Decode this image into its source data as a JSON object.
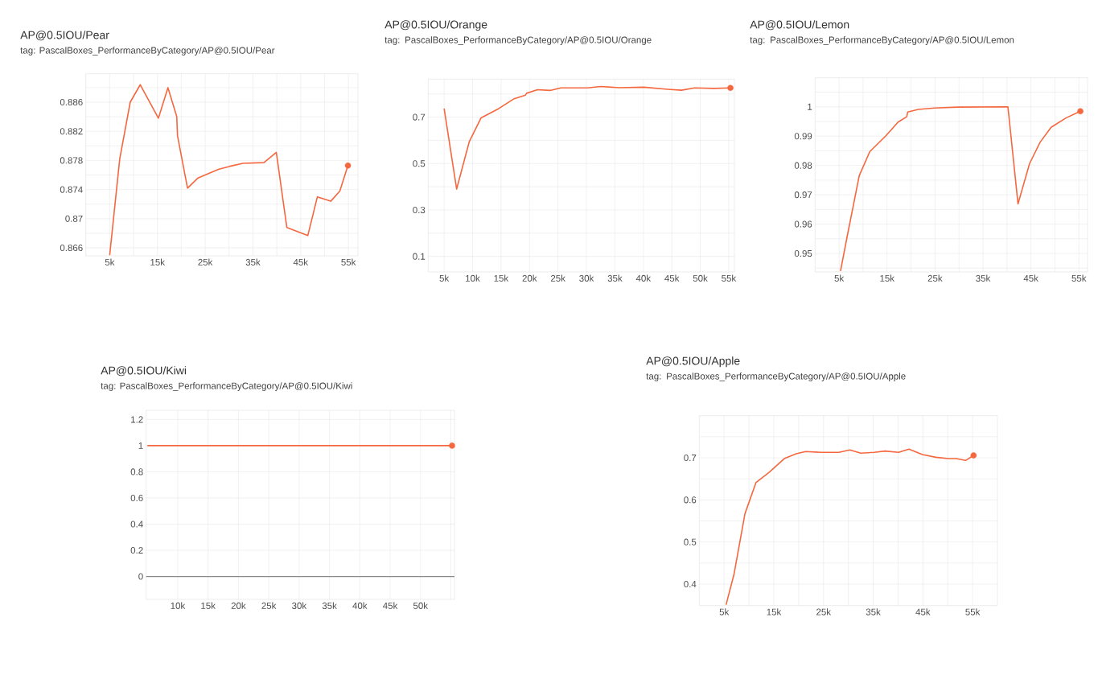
{
  "chart_data": [
    {
      "type": "line",
      "title": "AP@0.5IOU/Pear",
      "subtitle": "tag: PascalBoxes_PerformanceByCategory/AP@0.5IOU/Pear",
      "grid": true,
      "xlim": [
        0,
        57000
      ],
      "ylim": [
        0.8649,
        0.8899
      ],
      "xticks": [
        {
          "value": 5000,
          "label": "5k"
        },
        {
          "value": 10000,
          "label": null
        },
        {
          "value": 15000,
          "label": "15k"
        },
        {
          "value": 20000,
          "label": null
        },
        {
          "value": 25000,
          "label": "25k"
        },
        {
          "value": 30000,
          "label": null
        },
        {
          "value": 35000,
          "label": "35k"
        },
        {
          "value": 40000,
          "label": null
        },
        {
          "value": 45000,
          "label": "45k"
        },
        {
          "value": 50000,
          "label": null
        },
        {
          "value": 55000,
          "label": "55k"
        }
      ],
      "yticks": [
        0.866,
        {
          "value": 0.868,
          "label": null
        },
        0.87,
        {
          "value": 0.872,
          "label": null
        },
        0.874,
        {
          "value": 0.876,
          "label": null
        },
        0.878,
        {
          "value": 0.88,
          "label": null
        },
        0.882,
        {
          "value": 0.884,
          "label": null
        },
        0.886,
        {
          "value": 0.888,
          "label": null
        }
      ],
      "series": [
        {
          "color": "#f4673f",
          "x": [
            5000,
            7100,
            9300,
            11400,
            15200,
            17200,
            19050,
            19200,
            21300,
            23500,
            25700,
            27900,
            30200,
            32900,
            37300,
            39900,
            42100,
            46500,
            48500,
            51300,
            53200,
            54900
          ],
          "values": [
            0.865,
            0.8782,
            0.886,
            0.8884,
            0.8838,
            0.888,
            0.884,
            0.8814,
            0.8742,
            0.8756,
            0.8762,
            0.8768,
            0.8772,
            0.8776,
            0.8777,
            0.8791,
            0.8688,
            0.8677,
            0.873,
            0.8724,
            0.8738,
            0.8773
          ]
        },
        {
          "type": "scatter",
          "color": "#f4673f",
          "x": [
            54900
          ],
          "values": [
            0.8773
          ]
        }
      ]
    },
    {
      "type": "line",
      "title": "AP@0.5IOU/Orange",
      "subtitle": "tag: PascalBoxes_PerformanceByCategory/AP@0.5IOU/Orange",
      "grid": true,
      "xlim": [
        2200,
        56000
      ],
      "ylim": [
        0.033,
        0.864
      ],
      "xticks": [
        {
          "value": 5000,
          "label": "5k"
        },
        {
          "value": 10000,
          "label": "10k"
        },
        {
          "value": 15000,
          "label": "15k"
        },
        {
          "value": 20000,
          "label": "20k"
        },
        {
          "value": 25000,
          "label": "25k"
        },
        {
          "value": 30000,
          "label": "30k"
        },
        {
          "value": 35000,
          "label": "35k"
        },
        {
          "value": 40000,
          "label": "40k"
        },
        {
          "value": 45000,
          "label": "45k"
        },
        {
          "value": 50000,
          "label": "50k"
        },
        {
          "value": 55000,
          "label": "55k"
        }
      ],
      "yticks": [
        0.1,
        {
          "value": 0.2,
          "label": null
        },
        0.3,
        {
          "value": 0.4,
          "label": null
        },
        0.5,
        {
          "value": 0.6,
          "label": null
        },
        0.7,
        {
          "value": 0.8,
          "label": null
        }
      ],
      "series": [
        {
          "color": "#f4673f",
          "x": [
            5000,
            7200,
            9400,
            11500,
            14600,
            17200,
            19300,
            19500,
            21400,
            23600,
            25500,
            30200,
            32500,
            35800,
            40100,
            44300,
            46700,
            49000,
            52400,
            55300
          ],
          "values": [
            0.737,
            0.39,
            0.593,
            0.697,
            0.737,
            0.778,
            0.795,
            0.803,
            0.818,
            0.815,
            0.826,
            0.826,
            0.832,
            0.827,
            0.829,
            0.82,
            0.816,
            0.826,
            0.824,
            0.826
          ]
        },
        {
          "type": "scatter",
          "color": "#f4673f",
          "x": [
            55300
          ],
          "values": [
            0.826
          ]
        }
      ]
    },
    {
      "type": "line",
      "title": "AP@0.5IOU/Lemon",
      "subtitle": "tag: PascalBoxes_PerformanceByCategory/AP@0.5IOU/Lemon",
      "grid": true,
      "xlim": [
        0,
        56800
      ],
      "ylim": [
        0.9437,
        1.0099
      ],
      "xticks": [
        {
          "value": 5000,
          "label": "5k"
        },
        {
          "value": 10000,
          "label": null
        },
        {
          "value": 15000,
          "label": "15k"
        },
        {
          "value": 20000,
          "label": null
        },
        {
          "value": 25000,
          "label": "25k"
        },
        {
          "value": 30000,
          "label": null
        },
        {
          "value": 35000,
          "label": "35k"
        },
        {
          "value": 40000,
          "label": null
        },
        {
          "value": 45000,
          "label": "45k"
        },
        {
          "value": 50000,
          "label": null
        },
        {
          "value": 55000,
          "label": "55k"
        }
      ],
      "yticks": [
        {
          "value": 0.945,
          "label": null
        },
        0.95,
        {
          "value": 0.955,
          "label": null
        },
        0.96,
        {
          "value": 0.965,
          "label": null
        },
        0.97,
        {
          "value": 0.975,
          "label": null
        },
        0.98,
        {
          "value": 0.985,
          "label": null
        },
        0.99,
        {
          "value": 0.995,
          "label": null
        },
        1,
        {
          "value": 1.005,
          "label": null
        }
      ],
      "series": [
        {
          "color": "#f4673f",
          "x": [
            5300,
            6700,
            9200,
            11400,
            14800,
            17300,
            19100,
            19300,
            21500,
            24900,
            29900,
            40200,
            42300,
            44700,
            46900,
            49200,
            52300,
            55300
          ],
          "values": [
            0.944,
            0.9559,
            0.9765,
            0.9847,
            0.9902,
            0.9948,
            0.9966,
            0.9982,
            0.9991,
            0.9996,
            0.9999,
            1.0,
            0.9669,
            0.9806,
            0.9879,
            0.993,
            0.9962,
            0.9985
          ]
        },
        {
          "type": "scatter",
          "color": "#f4673f",
          "x": [
            55300
          ],
          "values": [
            0.9985
          ]
        }
      ]
    },
    {
      "type": "line",
      "title": "AP@0.5IOU/Kiwi",
      "subtitle": "tag: PascalBoxes_PerformanceByCategory/AP@0.5IOU/Kiwi",
      "grid": true,
      "xlim": [
        4800,
        55600
      ],
      "ylim": [
        -0.175,
        1.27
      ],
      "xticks": [
        {
          "value": 10000,
          "label": "10k"
        },
        {
          "value": 15000,
          "label": "15k"
        },
        {
          "value": 20000,
          "label": "20k"
        },
        {
          "value": 25000,
          "label": "25k"
        },
        {
          "value": 30000,
          "label": "30k"
        },
        {
          "value": 35000,
          "label": "35k"
        },
        {
          "value": 40000,
          "label": "40k"
        },
        {
          "value": 45000,
          "label": "45k"
        },
        {
          "value": 50000,
          "label": "50k"
        },
        {
          "value": 55000,
          "label": null
        }
      ],
      "yticks": [
        0,
        0.2,
        0.4,
        0.6,
        0.8,
        1,
        1.2
      ],
      "ref_lines": [
        {
          "axis": "y",
          "value": 0,
          "color": "#8a8a8a"
        }
      ],
      "series": [
        {
          "color": "#f4673f",
          "x": [
            5000,
            55200
          ],
          "values": [
            1,
            1
          ]
        },
        {
          "type": "scatter",
          "color": "#f4673f",
          "x": [
            55200
          ],
          "values": [
            1
          ]
        }
      ]
    },
    {
      "type": "line",
      "title": "AP@0.5IOU/Apple",
      "subtitle": "tag: PascalBoxes_PerformanceByCategory/AP@0.5IOU/Apple",
      "grid": true,
      "xlim": [
        0,
        60000
      ],
      "ylim": [
        0.349,
        0.8
      ],
      "xticks": [
        {
          "value": 5000,
          "label": "5k"
        },
        {
          "value": 10000,
          "label": null
        },
        {
          "value": 15000,
          "label": "15k"
        },
        {
          "value": 20000,
          "label": null
        },
        {
          "value": 25000,
          "label": "25k"
        },
        {
          "value": 30000,
          "label": null
        },
        {
          "value": 35000,
          "label": "35k"
        },
        {
          "value": 40000,
          "label": null
        },
        {
          "value": 45000,
          "label": "45k"
        },
        {
          "value": 50000,
          "label": null
        },
        {
          "value": 55000,
          "label": "55k"
        }
      ],
      "yticks": [
        0.4,
        {
          "value": 0.45,
          "label": null
        },
        0.5,
        {
          "value": 0.55,
          "label": null
        },
        0.6,
        {
          "value": 0.65,
          "label": null
        },
        0.7,
        {
          "value": 0.75,
          "label": null
        }
      ],
      "series": [
        {
          "color": "#f4673f",
          "x": [
            5400,
            7000,
            9200,
            11400,
            14100,
            17100,
            19500,
            21400,
            24400,
            28100,
            30300,
            32500,
            35200,
            37400,
            40100,
            42200,
            44900,
            47600,
            50100,
            51700,
            53600,
            55200
          ],
          "values": [
            0.351,
            0.424,
            0.5675,
            0.641,
            0.666,
            0.698,
            0.7096,
            0.715,
            0.713,
            0.713,
            0.7186,
            0.711,
            0.713,
            0.716,
            0.713,
            0.7205,
            0.7077,
            0.7013,
            0.698,
            0.698,
            0.6937,
            0.7057
          ]
        },
        {
          "type": "scatter",
          "color": "#f4673f",
          "x": [
            55200
          ],
          "values": [
            0.7057
          ]
        }
      ]
    }
  ]
}
